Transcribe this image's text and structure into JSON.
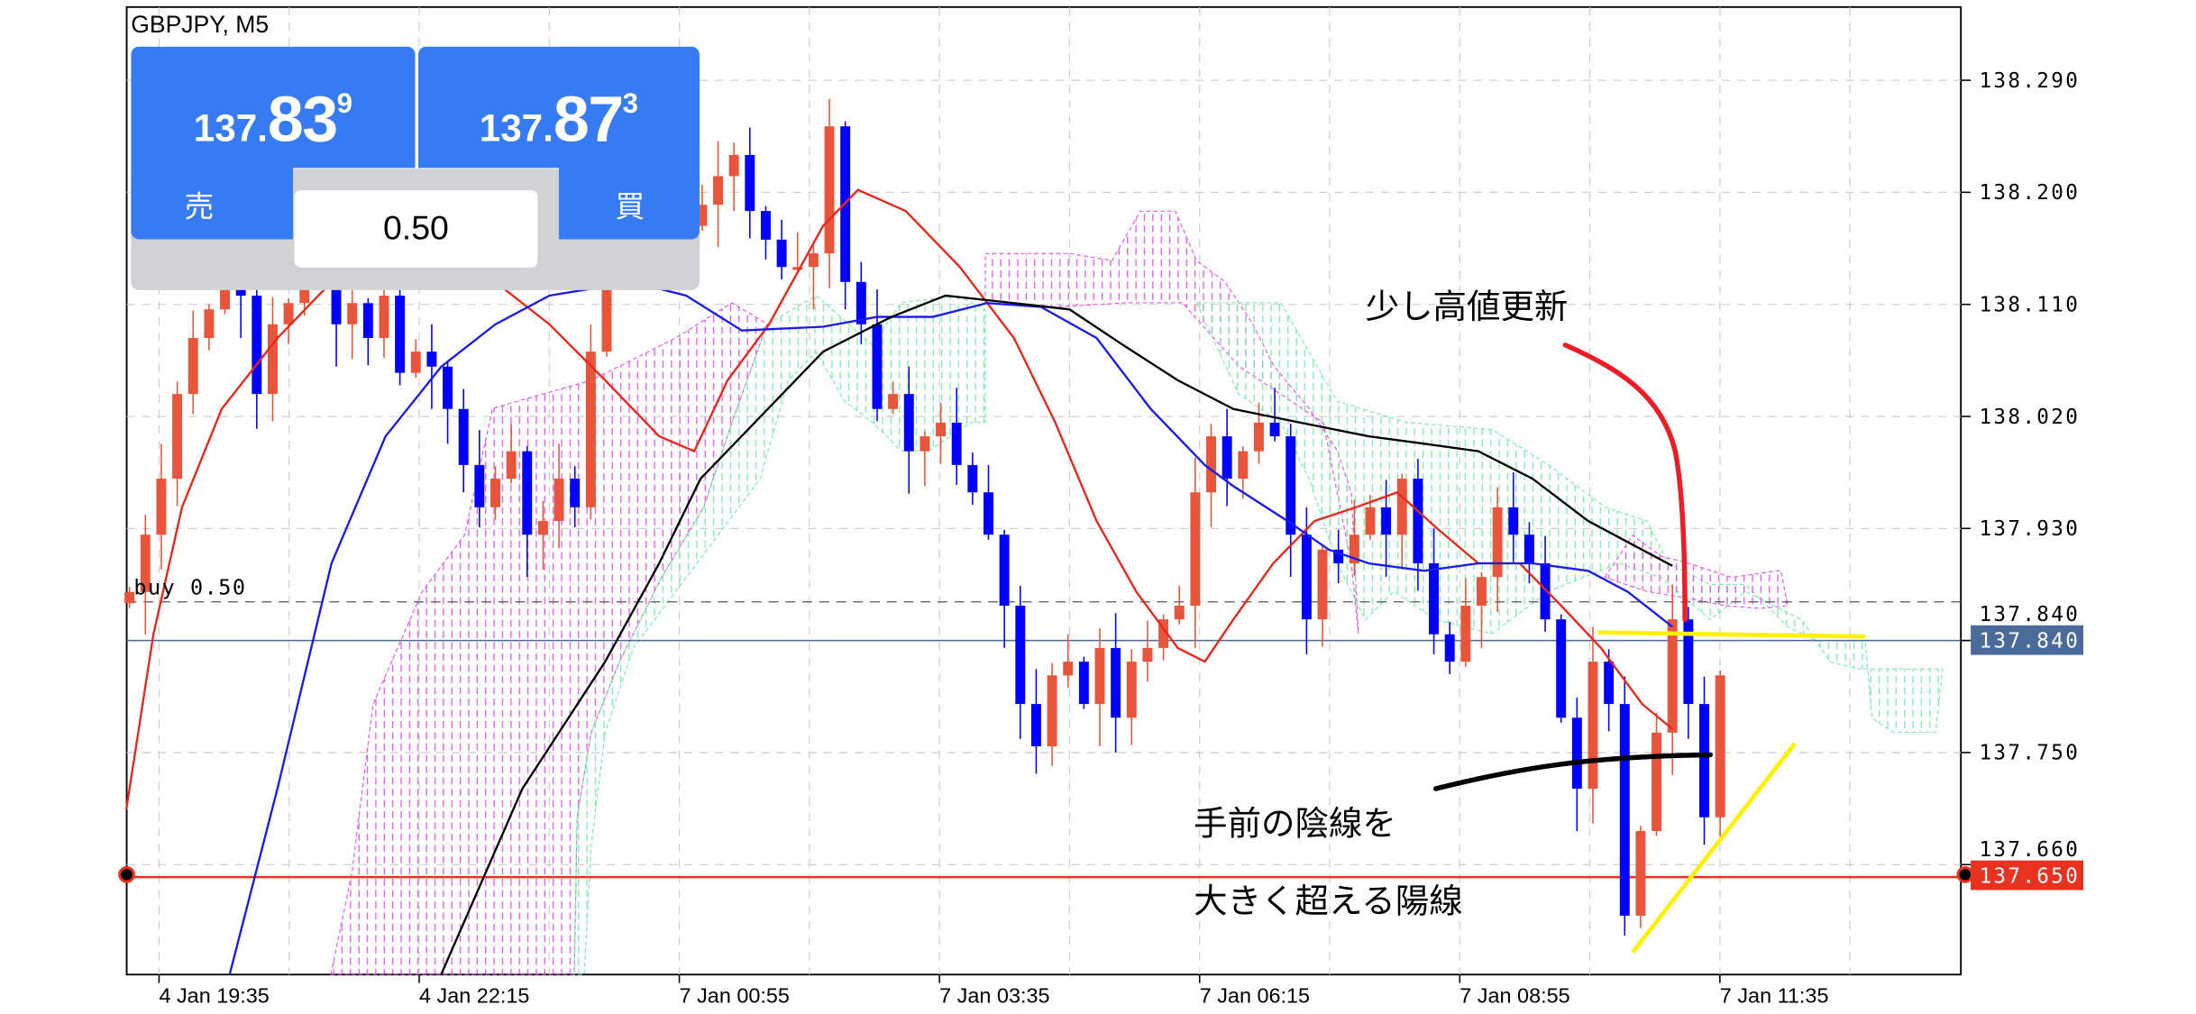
{
  "window": {
    "symbol_timeframe": "GBPJPY, M5"
  },
  "trade_panel": {
    "sell": {
      "price_prefix": "137.",
      "price_main": "83",
      "price_sup": "9",
      "label": "売"
    },
    "buy": {
      "price_prefix": "137.",
      "price_main": "87",
      "price_sup": "3",
      "label": "買"
    },
    "lot_size": "0.50"
  },
  "lines": {
    "position_label": "buy 0.50",
    "position_price": 137.871,
    "current_price": "137.840",
    "alert_price": "137.650"
  },
  "annotations": {
    "note_top": "少し高値更新",
    "note_bottom_1": "手前の陰線を",
    "note_bottom_2": "大きく超える陽線"
  },
  "colors": {
    "bull": "#e8553a",
    "bear": "#0000ff",
    "ma_fast": "#e8261c",
    "ma_mid": "#1a1aee",
    "ma_slow": "#000000",
    "current_line": "#4a6b9a",
    "alert_line": "#e8321f",
    "panel_blue": "#377bf4"
  },
  "chart_data": {
    "type": "candlestick",
    "ylim": [
      137.56,
      138.35
    ],
    "y_ticks": [
      "138.290",
      "138.200",
      "138.110",
      "138.020",
      "137.930",
      "137.840",
      "137.750",
      "137.660"
    ],
    "x_ticks": [
      "4 Jan 19:35",
      "4 Jan 22:15",
      "7 Jan 00:55",
      "7 Jan 03:35",
      "7 Jan 06:15",
      "7 Jan 08:55",
      "7 Jan 11:35"
    ],
    "grid": true,
    "closes": [
      137.879,
      137.925,
      137.97,
      138.038,
      138.083,
      138.106,
      138.128,
      138.117,
      138.038,
      138.094,
      138.111,
      138.128,
      138.128,
      138.094,
      138.111,
      138.083,
      138.117,
      138.055,
      138.072,
      138.06,
      138.026,
      137.981,
      137.947,
      137.97,
      137.992,
      137.925,
      137.936,
      137.97,
      137.947,
      138.072,
      138.253,
      138.23,
      138.207,
      138.275,
      138.185,
      138.173,
      138.19,
      138.213,
      138.23,
      138.185,
      138.162,
      138.14,
      138.14,
      138.151,
      138.253,
      138.128,
      138.094,
      138.026,
      138.038,
      137.992,
      138.004,
      138.015,
      137.981,
      137.959,
      137.925,
      137.868,
      137.789,
      137.755,
      137.812,
      137.823,
      137.789,
      137.834,
      137.778,
      137.823,
      137.834,
      137.857,
      137.868,
      137.959,
      138.004,
      137.97,
      137.992,
      138.015,
      138.004,
      137.925,
      137.857,
      137.913,
      137.902,
      137.925,
      137.947,
      137.925,
      137.97,
      137.902,
      137.845,
      137.823,
      137.868,
      137.891,
      137.947,
      137.925,
      137.902,
      137.857,
      137.778,
      137.721,
      137.823,
      137.789,
      137.619,
      137.687,
      137.766,
      137.857,
      137.789,
      137.698,
      137.812
    ],
    "ma_fast": [
      [
        -0.2,
        137.704
      ],
      [
        1.5,
        137.845
      ],
      [
        3.3,
        137.947
      ],
      [
        5.8,
        138.026
      ],
      [
        9.3,
        138.083
      ],
      [
        12.7,
        138.128
      ],
      [
        17.9,
        138.14
      ],
      [
        23.0,
        138.128
      ],
      [
        26.4,
        138.094
      ],
      [
        29.9,
        138.049
      ],
      [
        33.3,
        138.004
      ],
      [
        35.5,
        137.992
      ],
      [
        37.6,
        138.049
      ],
      [
        40.2,
        138.094
      ],
      [
        43.6,
        138.173
      ],
      [
        45.8,
        138.202
      ],
      [
        48.8,
        138.185
      ],
      [
        52.2,
        138.14
      ],
      [
        55.6,
        138.083
      ],
      [
        58.2,
        138.015
      ],
      [
        60.8,
        137.936
      ],
      [
        63.3,
        137.879
      ],
      [
        65.9,
        137.834
      ],
      [
        67.6,
        137.823
      ],
      [
        69.4,
        137.857
      ],
      [
        71.9,
        137.902
      ],
      [
        74.5,
        137.936
      ],
      [
        77.1,
        137.947
      ],
      [
        79.7,
        137.959
      ],
      [
        82.2,
        137.93
      ],
      [
        84.8,
        137.902
      ],
      [
        87.4,
        137.902
      ],
      [
        90.0,
        137.868
      ],
      [
        92.5,
        137.834
      ],
      [
        95.1,
        137.789
      ],
      [
        97,
        137.769
      ]
    ],
    "ma_mid": [
      [
        6.3,
        137.572
      ],
      [
        9.3,
        137.721
      ],
      [
        12.7,
        137.902
      ],
      [
        16.1,
        138.004
      ],
      [
        19.6,
        138.06
      ],
      [
        23.0,
        138.094
      ],
      [
        26.4,
        138.117
      ],
      [
        31.6,
        138.128
      ],
      [
        35.0,
        138.117
      ],
      [
        38.5,
        138.089
      ],
      [
        43.6,
        138.092
      ],
      [
        47.0,
        138.1
      ],
      [
        50.5,
        138.1
      ],
      [
        53.9,
        138.111
      ],
      [
        57.3,
        138.108
      ],
      [
        60.8,
        138.083
      ],
      [
        64.2,
        138.026
      ],
      [
        67.6,
        137.981
      ],
      [
        69.4,
        137.964
      ],
      [
        72.8,
        137.936
      ],
      [
        75.4,
        137.913
      ],
      [
        77.9,
        137.902
      ],
      [
        81.4,
        137.896
      ],
      [
        84.8,
        137.902
      ],
      [
        88.2,
        137.902
      ],
      [
        91.7,
        137.896
      ],
      [
        94.2,
        137.879
      ],
      [
        97,
        137.851
      ]
    ],
    "ma_slow": [
      [
        19.6,
        137.572
      ],
      [
        24.7,
        137.721
      ],
      [
        29.9,
        137.823
      ],
      [
        33.3,
        137.902
      ],
      [
        35.9,
        137.97
      ],
      [
        39.3,
        138.015
      ],
      [
        43.6,
        138.072
      ],
      [
        47.9,
        138.1
      ],
      [
        51.3,
        138.117
      ],
      [
        55.6,
        138.111
      ],
      [
        59.1,
        138.106
      ],
      [
        62.5,
        138.077
      ],
      [
        65.9,
        138.049
      ],
      [
        69.4,
        138.026
      ],
      [
        73.6,
        138.015
      ],
      [
        77.9,
        138.004
      ],
      [
        81.4,
        137.998
      ],
      [
        84.8,
        137.992
      ],
      [
        88.2,
        137.97
      ],
      [
        91.7,
        137.936
      ],
      [
        94.2,
        137.919
      ],
      [
        97,
        137.9
      ]
    ]
  }
}
